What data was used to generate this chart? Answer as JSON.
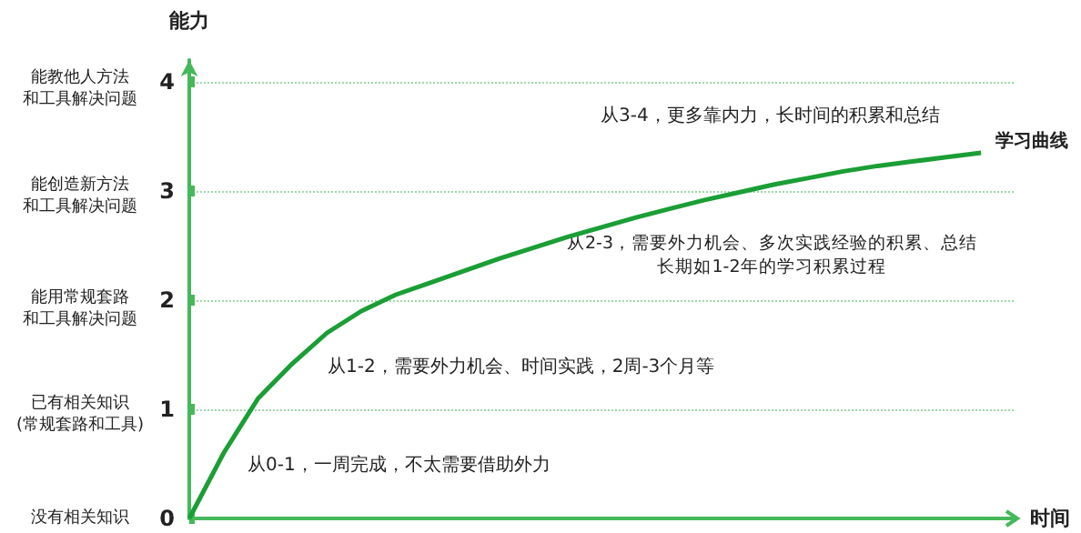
{
  "chart_data": {
    "type": "line",
    "ylabel": "能力",
    "xlabel": "时间",
    "categories": [
      null,
      null,
      null,
      null,
      null,
      null,
      null,
      null,
      null,
      null,
      null,
      null,
      null,
      null,
      null,
      null,
      null,
      null,
      null,
      null,
      null,
      null,
      null,
      null,
      null
    ],
    "series": [
      {
        "name": "学习曲线",
        "color": "#1a9e35",
        "values": [
          0,
          0.6,
          1.1,
          1.42,
          1.7,
          1.9,
          2.05,
          2.16,
          2.27,
          2.38,
          2.48,
          2.58,
          2.67,
          2.76,
          2.84,
          2.92,
          2.99,
          3.06,
          3.12,
          3.18,
          3.23,
          3.27,
          3.31,
          3.35,
          null
        ]
      }
    ],
    "ylim": [
      0,
      4.2
    ],
    "yticks": [
      0,
      1,
      2,
      3,
      4
    ],
    "grid": "y",
    "marker": "none",
    "line_style": "solid",
    "legend": false,
    "annotations": [
      "没有相关知识",
      "已有相关知识",
      "(常规套路和工具)",
      "能用常规套路",
      "和工具解决问题",
      "能创造新方法",
      "和工具解决问题",
      "能教他人方法",
      "和工具解决问题",
      "从0-1，一周完成，不太需要借助外力",
      "从1-2，需要外力机会、时间实践，2周-3个月等",
      "从2-3，需要外力机会、多次实践经验的积累、总结",
      "长期如1-2年的学习积累过程",
      "从3-4，更多靠内力，长时间的积累和总结"
    ]
  }
}
